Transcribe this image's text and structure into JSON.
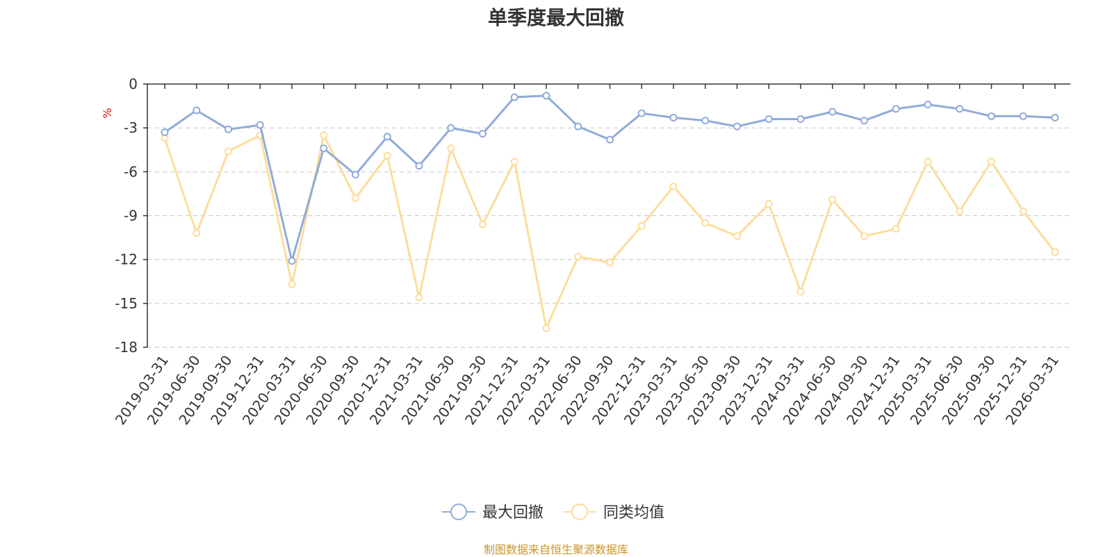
{
  "chart_data": {
    "type": "line",
    "title": "单季度最大回撤",
    "ylabel": "%",
    "ylim": [
      -18,
      0
    ],
    "yticks": [
      0,
      -3,
      -6,
      -9,
      -12,
      -15,
      -18
    ],
    "grid": true,
    "legend_position": "bottom-center",
    "categories": [
      "2019-03-31",
      "2019-06-30",
      "2019-09-30",
      "2019-12-31",
      "2020-03-31",
      "2020-06-30",
      "2020-09-30",
      "2020-12-31",
      "2021-03-31",
      "2021-06-30",
      "2021-09-30",
      "2021-12-31",
      "2022-03-31",
      "2022-06-30",
      "2022-09-30",
      "2022-12-31",
      "2023-03-31",
      "2023-06-30",
      "2023-09-30",
      "2023-12-31",
      "2024-03-31",
      "2024-06-30",
      "2024-09-30",
      "2024-12-31",
      "2025-03-31",
      "2025-06-30",
      "2025-09-30",
      "2025-12-31",
      "2026-03-31"
    ],
    "series": [
      {
        "name": "最大回撤",
        "color": "#8fabd9",
        "values": [
          -3.3,
          -1.8,
          -3.1,
          -2.8,
          -12.1,
          -4.4,
          -6.2,
          -3.6,
          -5.6,
          -3.0,
          -3.4,
          -0.9,
          -0.8,
          -2.9,
          -3.8,
          -2.0,
          -2.3,
          -2.5,
          -2.9,
          -2.4,
          -2.4,
          -1.9,
          -2.5,
          -1.7,
          -1.4,
          -1.7,
          -2.2,
          -2.2,
          -2.3
        ]
      },
      {
        "name": "同类均值",
        "color": "#fddc9c",
        "values": [
          -3.7,
          -10.2,
          -4.6,
          -3.5,
          -13.7,
          -3.5,
          -7.8,
          -4.9,
          -14.6,
          -4.4,
          -9.6,
          -5.3,
          -16.7,
          -11.8,
          -12.2,
          -9.7,
          -7.0,
          -9.5,
          -10.4,
          -8.2,
          -14.2,
          -7.9,
          -10.4,
          -9.9,
          -5.3,
          -8.7,
          -5.3,
          -8.7,
          -11.5
        ]
      }
    ]
  },
  "source_note": "制图数据来自恒生聚源数据库",
  "colors": {
    "axis": "#333333",
    "grid": "#cccccc",
    "ylabel": "#e01010",
    "source": "#c8952a"
  }
}
